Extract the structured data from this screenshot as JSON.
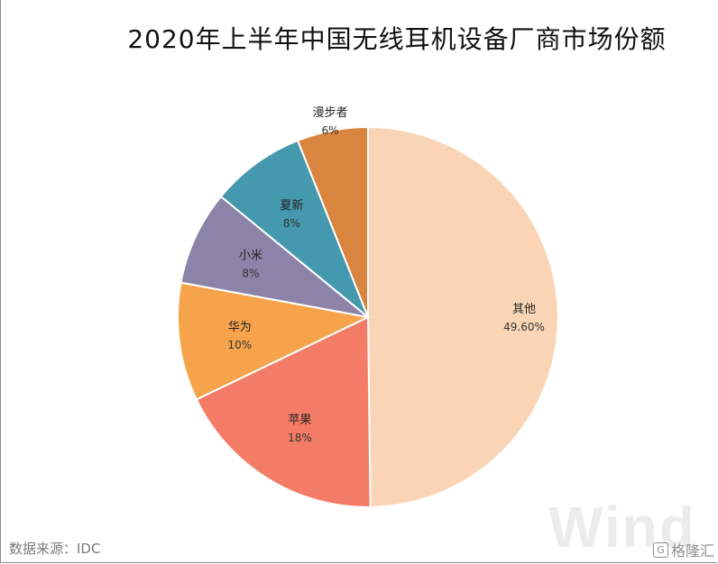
{
  "chart_data": {
    "type": "pie",
    "title": "2020年上半年中国无线耳机设备厂商市场份额",
    "slices": [
      {
        "label": "其他",
        "value": 49.6,
        "value_label": "49.60%",
        "color": "#FAD5B5"
      },
      {
        "label": "苹果",
        "value": 18,
        "value_label": "18%",
        "color": "#F47C66"
      },
      {
        "label": "华为",
        "value": 10,
        "value_label": "10%",
        "color": "#F6A34C"
      },
      {
        "label": "小米",
        "value": 8,
        "value_label": "8%",
        "color": "#8C84A8"
      },
      {
        "label": "夏新",
        "value": 8,
        "value_label": "8%",
        "color": "#4499AE"
      },
      {
        "label": "漫步者",
        "value": 6,
        "value_label": "6%",
        "color": "#DA853F"
      }
    ],
    "start": "12 o'clock",
    "direction": "clockwise"
  },
  "footer": {
    "source": "数据来源：IDC",
    "watermark": "Wind",
    "brand": "格隆汇",
    "brand_logo": "G"
  }
}
